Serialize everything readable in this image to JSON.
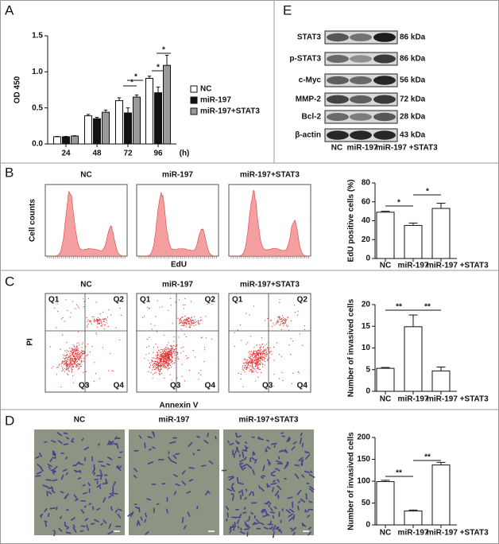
{
  "panel_labels": [
    "A",
    "B",
    "C",
    "D",
    "E"
  ],
  "chart_data": [
    {
      "type": "bar",
      "ylabel": "OD 450",
      "xlabel": "(h)",
      "categories": [
        "24",
        "48",
        "72",
        "96"
      ],
      "series": [
        {
          "name": "NC",
          "color": "#ffffff",
          "values": [
            0.1,
            0.39,
            0.6,
            0.91
          ],
          "errors": [
            0.005,
            0.02,
            0.04,
            0.03
          ]
        },
        {
          "name": "miR-197",
          "color": "#111111",
          "values": [
            0.1,
            0.35,
            0.43,
            0.71
          ],
          "errors": [
            0.005,
            0.02,
            0.07,
            0.08
          ]
        },
        {
          "name": "miR-197+STAT3",
          "color": "#999999",
          "values": [
            0.11,
            0.44,
            0.65,
            1.09
          ],
          "errors": [
            0.005,
            0.03,
            0.03,
            0.14
          ]
        }
      ],
      "ylim": [
        0,
        1.5
      ],
      "yticks": [
        {
          "value": 0,
          "label": "0.0"
        },
        0.5,
        {
          "value": 1,
          "label": "1.0"
        },
        1.5
      ],
      "annotations": [
        "*",
        "*",
        "*",
        "*"
      ],
      "legend": "right"
    },
    {
      "type": "bar",
      "ylabel": "EdU positive cells (%)",
      "categories": [
        "NC",
        "miR-197",
        "miR-197 +STAT3"
      ],
      "values": [
        49,
        35,
        53
      ],
      "errors": [
        1,
        2.5,
        5.5
      ],
      "color": "#ffffff",
      "ylim": [
        0,
        80
      ],
      "yticks": [
        0,
        20,
        40,
        60,
        80
      ],
      "annotations": [
        "*",
        "*"
      ]
    },
    {
      "type": "bar",
      "ylabel": "Number of invasived cells",
      "categories": [
        "NC",
        "miR-197",
        "miR-197 +STAT3"
      ],
      "values": [
        5.3,
        14.9,
        4.7
      ],
      "errors": [
        0.2,
        2.7,
        0.9
      ],
      "color": "#ffffff",
      "ylim": [
        0,
        20
      ],
      "yticks": [
        0,
        5,
        10,
        15,
        20
      ],
      "annotations": [
        "**",
        "**"
      ]
    },
    {
      "type": "bar",
      "ylabel": "Number of invasived cells",
      "categories": [
        "NC",
        "miR-197",
        "miR-197 +STAT3"
      ],
      "values": [
        99,
        32,
        137
      ],
      "errors": [
        3,
        2,
        6
      ],
      "color": "#ffffff",
      "ylim": [
        0,
        200
      ],
      "yticks": [
        0,
        50,
        100,
        150,
        200
      ],
      "annotations": [
        "**",
        "**"
      ]
    }
  ],
  "edu": {
    "headers": [
      "NC",
      "miR-197",
      "miR-197+STAT3"
    ],
    "ylabel": "Cell counts",
    "xlabel": "EdU"
  },
  "apoptosis": {
    "headers": [
      "NC",
      "miR-197",
      "miR-197+STAT3"
    ],
    "quadrants": [
      "Q1",
      "Q2",
      "Q3",
      "Q4"
    ],
    "ylabel": "PI",
    "xlabel": "Annexin V"
  },
  "invasion": {
    "headers": [
      "NC",
      "miR-197",
      "miR-197+STAT3"
    ]
  },
  "western_blot": {
    "rows": [
      {
        "protein": "STAT3",
        "size": "86 kDa"
      },
      {
        "protein": "p-STAT3",
        "size": "86 kDa"
      },
      {
        "protein": "c-Myc",
        "size": "56 kDa"
      },
      {
        "protein": "MMP-2",
        "size": "72 kDa"
      },
      {
        "protein": "Bcl-2",
        "size": "28 kDa"
      },
      {
        "protein": "β-actin",
        "size": "43 kDa"
      }
    ],
    "lanes": [
      "NC",
      "miR-197",
      "miR-197 +STAT3"
    ]
  }
}
